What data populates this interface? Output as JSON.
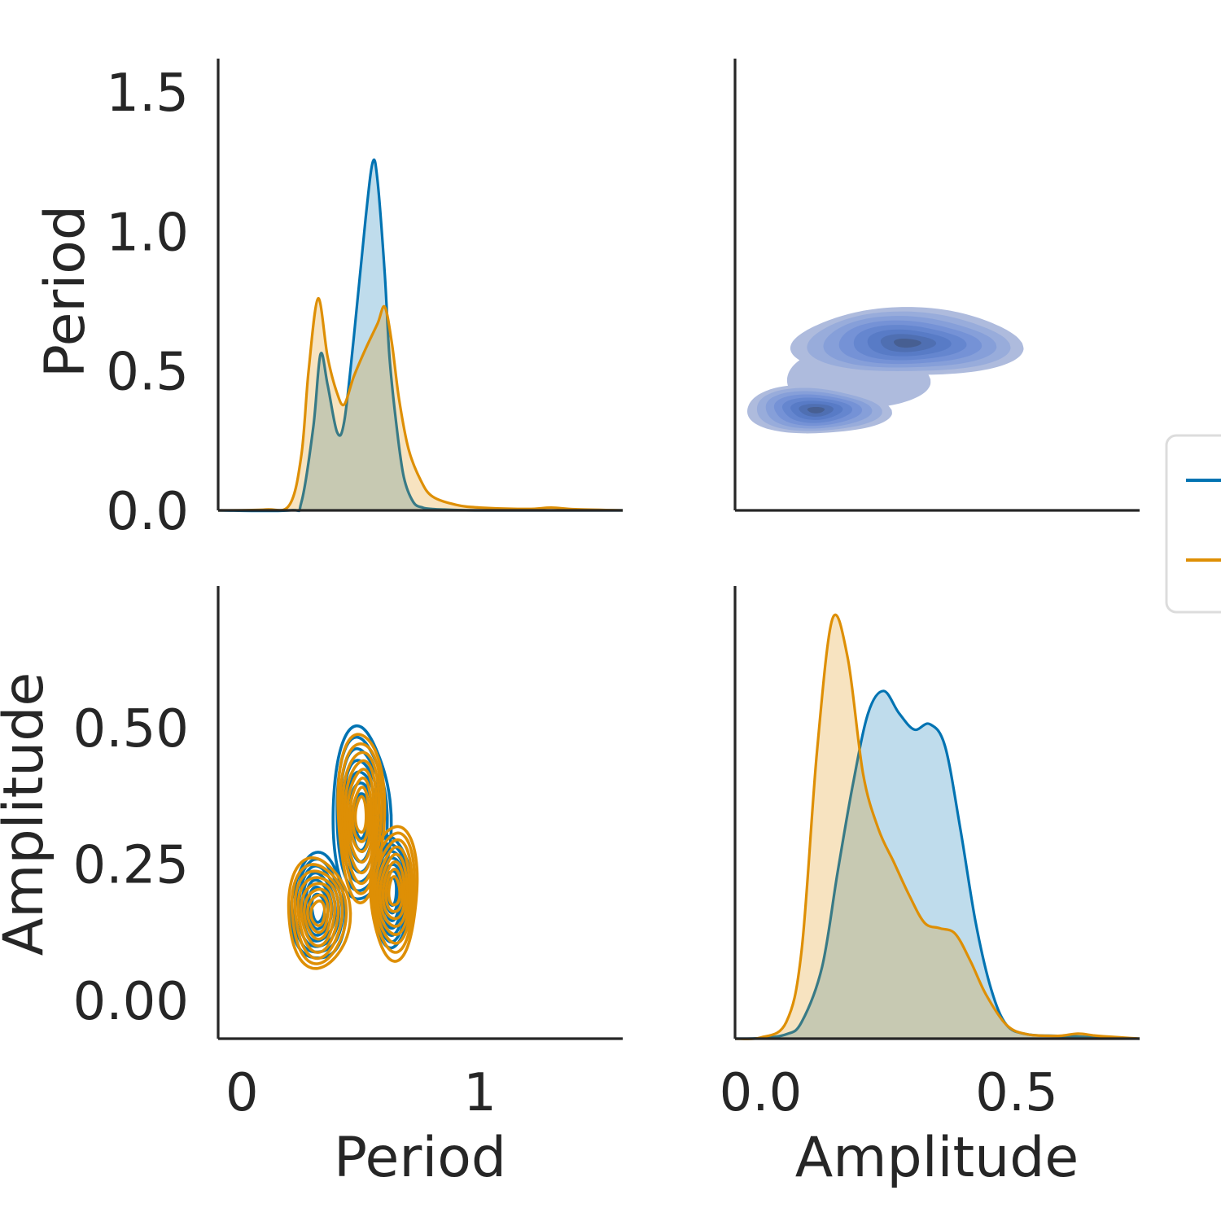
{
  "colors": {
    "series_a": "#0173b2",
    "series_b": "#de8f05",
    "joint_fill": "#4c72b0",
    "axis": "#262626"
  },
  "axes": {
    "period_label": "Period",
    "amplitude_label": "Amplitude"
  },
  "legend": {
    "placement": "right-center, clipped at figure edge",
    "entries": [
      "",
      ""
    ]
  },
  "chart_data": [
    {
      "panel": "top-left",
      "type": "area",
      "description_kind": "kde-density",
      "xlabel": "",
      "ylabel": "Period",
      "xlim": [
        -0.1,
        1.6
      ],
      "ylim": [
        0,
        1.62
      ],
      "y_ticks": [
        "0.0",
        "0.5",
        "1.0",
        "1.5"
      ],
      "y_tick_values": [
        0.0,
        0.5,
        1.0,
        1.5
      ],
      "series": [
        {
          "color": "series_a",
          "x": [
            -0.1,
            0.2,
            0.25,
            0.3,
            0.33,
            0.36,
            0.4,
            0.43,
            0.47,
            0.52,
            0.55,
            0.57,
            0.6,
            0.62,
            0.65,
            0.68,
            0.72,
            0.76,
            0.8,
            0.85,
            1.0,
            1.6
          ],
          "y": [
            0,
            0,
            0.03,
            0.3,
            0.56,
            0.45,
            0.28,
            0.32,
            0.62,
            1.05,
            1.25,
            1.18,
            0.85,
            0.55,
            0.3,
            0.12,
            0.03,
            0.01,
            0.005,
            0.003,
            0,
            0
          ]
        },
        {
          "color": "series_b",
          "x": [
            -0.1,
            0.1,
            0.2,
            0.25,
            0.28,
            0.32,
            0.36,
            0.4,
            0.43,
            0.47,
            0.52,
            0.57,
            0.6,
            0.63,
            0.66,
            0.7,
            0.75,
            0.8,
            0.9,
            1.0,
            1.2,
            1.3,
            1.4,
            1.6
          ],
          "y": [
            0,
            0.003,
            0.02,
            0.2,
            0.5,
            0.76,
            0.55,
            0.42,
            0.38,
            0.48,
            0.58,
            0.67,
            0.73,
            0.6,
            0.4,
            0.22,
            0.11,
            0.05,
            0.02,
            0.01,
            0.005,
            0.01,
            0.004,
            0
          ]
        }
      ]
    },
    {
      "panel": "top-right",
      "type": "heatmap",
      "description_kind": "filled-kde-contours",
      "xlim": [
        -0.05,
        0.75
      ],
      "ylim": [
        0,
        1.62
      ],
      "blobs": [
        {
          "cx": 0.29,
          "cy": 0.6,
          "rx": 0.22,
          "ry": 0.23
        },
        {
          "cx": 0.11,
          "cy": 0.36,
          "rx": 0.14,
          "ry": 0.16
        }
      ],
      "levels": 8
    },
    {
      "panel": "bottom-left",
      "type": "line",
      "description_kind": "kde-contour-lines",
      "xlabel": "Period",
      "ylabel": "Amplitude",
      "xlim": [
        -0.1,
        1.6
      ],
      "ylim": [
        -0.07,
        0.76
      ],
      "x_ticks": [
        "0",
        "1"
      ],
      "x_tick_values": [
        0,
        1
      ],
      "y_ticks": [
        "0.00",
        "0.25",
        "0.50"
      ],
      "y_tick_values": [
        0.0,
        0.25,
        0.5
      ],
      "series": [
        {
          "color": "series_a",
          "centers": [
            {
              "cx": 0.32,
              "cy": 0.17,
              "rx": 0.11,
              "ry": 0.1
            },
            {
              "cx": 0.5,
              "cy": 0.34,
              "rx": 0.12,
              "ry": 0.16
            },
            {
              "cx": 0.63,
              "cy": 0.2,
              "rx": 0.08,
              "ry": 0.1
            }
          ],
          "levels": 7
        },
        {
          "color": "series_b",
          "centers": [
            {
              "cx": 0.32,
              "cy": 0.16,
              "rx": 0.13,
              "ry": 0.1
            },
            {
              "cx": 0.5,
              "cy": 0.34,
              "rx": 0.1,
              "ry": 0.15
            },
            {
              "cx": 0.64,
              "cy": 0.2,
              "rx": 0.1,
              "ry": 0.12
            }
          ],
          "levels": 8
        }
      ]
    },
    {
      "panel": "bottom-right",
      "type": "area",
      "description_kind": "kde-density",
      "xlabel": "Amplitude",
      "ylabel": "",
      "xlim": [
        -0.05,
        0.74
      ],
      "ylim": [
        0,
        8.2
      ],
      "x_ticks": [
        "0.0",
        "0.5"
      ],
      "x_tick_values": [
        0.0,
        0.5
      ],
      "series": [
        {
          "color": "series_a",
          "x": [
            -0.05,
            0.0,
            0.05,
            0.08,
            0.12,
            0.15,
            0.18,
            0.21,
            0.24,
            0.27,
            0.3,
            0.33,
            0.36,
            0.39,
            0.42,
            0.45,
            0.48,
            0.52,
            0.58,
            0.62,
            0.66,
            0.74
          ],
          "y": [
            0,
            0.01,
            0.08,
            0.3,
            1.3,
            3.0,
            4.6,
            5.9,
            6.3,
            5.9,
            5.6,
            5.7,
            5.3,
            3.8,
            2.1,
            0.9,
            0.25,
            0.08,
            0.05,
            0.04,
            0.02,
            0
          ]
        },
        {
          "color": "series_b",
          "x": [
            -0.05,
            0.0,
            0.05,
            0.08,
            0.11,
            0.14,
            0.17,
            0.2,
            0.23,
            0.26,
            0.29,
            0.32,
            0.35,
            0.38,
            0.41,
            0.44,
            0.48,
            0.52,
            0.58,
            0.62,
            0.66,
            0.74
          ],
          "y": [
            0,
            0.02,
            0.3,
            1.6,
            5.2,
            7.6,
            6.9,
            4.8,
            3.8,
            3.2,
            2.6,
            2.1,
            2.0,
            1.9,
            1.4,
            0.8,
            0.25,
            0.08,
            0.05,
            0.09,
            0.05,
            0
          ]
        }
      ]
    }
  ]
}
